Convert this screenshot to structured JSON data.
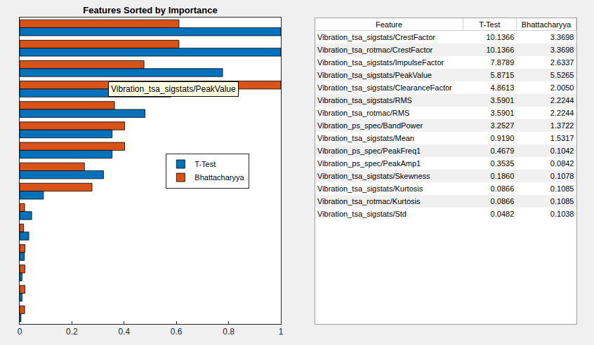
{
  "chart_data": {
    "type": "bar",
    "orientation": "horizontal",
    "title": "Features Sorted by Importance",
    "categories": [
      null,
      null,
      null,
      null,
      null,
      null,
      null,
      null,
      null,
      null,
      null,
      null,
      null,
      null,
      null
    ],
    "series": [
      {
        "name": "T-Test",
        "color": "#0072BD",
        "values": [
          1.0,
          1.0,
          0.777,
          0.579,
          0.48,
          0.354,
          0.354,
          0.321,
          0.091,
          0.046,
          0.035,
          0.018,
          0.009,
          0.009,
          0.005
        ]
      },
      {
        "name": "Bhattacharyya",
        "color": "#D95319",
        "values": [
          0.61,
          0.61,
          0.476,
          1.0,
          0.363,
          0.402,
          0.402,
          0.248,
          0.277,
          0.019,
          0.015,
          0.02,
          0.02,
          0.02,
          0.019
        ]
      }
    ],
    "xlim": [
      0,
      1
    ],
    "xticks": [
      0,
      0.2,
      0.4,
      0.6,
      0.8,
      1
    ],
    "tick_labels": "x",
    "grid": false,
    "legend": "center right",
    "annotations": [
      {
        "text": "Vibration_tsa_sigstats/PeakValue"
      }
    ]
  },
  "table": {
    "header": [
      "Feature",
      "T-Test",
      "Bhattacharyya"
    ],
    "rows": [
      [
        "Vibration_tsa_sigstats/CrestFactor",
        "10.1366",
        "3.3698"
      ],
      [
        "Vibration_tsa_rotmac/CrestFactor",
        "10.1366",
        "3.3698"
      ],
      [
        "Vibration_tsa_sigstats/ImpulseFactor",
        "7.8789",
        "2.6337"
      ],
      [
        "Vibration_tsa_sigstats/PeakValue",
        "5.8715",
        "5.5265"
      ],
      [
        "Vibration_tsa_sigstats/ClearanceFactor",
        "4.8613",
        "2.0050"
      ],
      [
        "Vibration_tsa_sigstats/RMS",
        "3.5901",
        "2.2244"
      ],
      [
        "Vibration_tsa_rotmac/RMS",
        "3.5901",
        "2.2244"
      ],
      [
        "Vibration_ps_spec/BandPower",
        "3.2527",
        "1.3722"
      ],
      [
        "Vibration_tsa_sigstats/Mean",
        "0.9190",
        "1.5317"
      ],
      [
        "Vibration_ps_spec/PeakFreq1",
        "0.4679",
        "0.1042"
      ],
      [
        "Vibration_ps_spec/PeakAmp1",
        "0.3535",
        "0.0842"
      ],
      [
        "Vibration_tsa_sigstats/Skewness",
        "0.1860",
        "0.1078"
      ],
      [
        "Vibration_tsa_sigstats/Kurtosis",
        "0.0866",
        "0.1085"
      ],
      [
        "Vibration_tsa_rotmac/Kurtosis",
        "0.0866",
        "0.1085"
      ],
      [
        "Vibration_tsa_sigstats/Std",
        "0.0482",
        "0.1038"
      ]
    ]
  }
}
